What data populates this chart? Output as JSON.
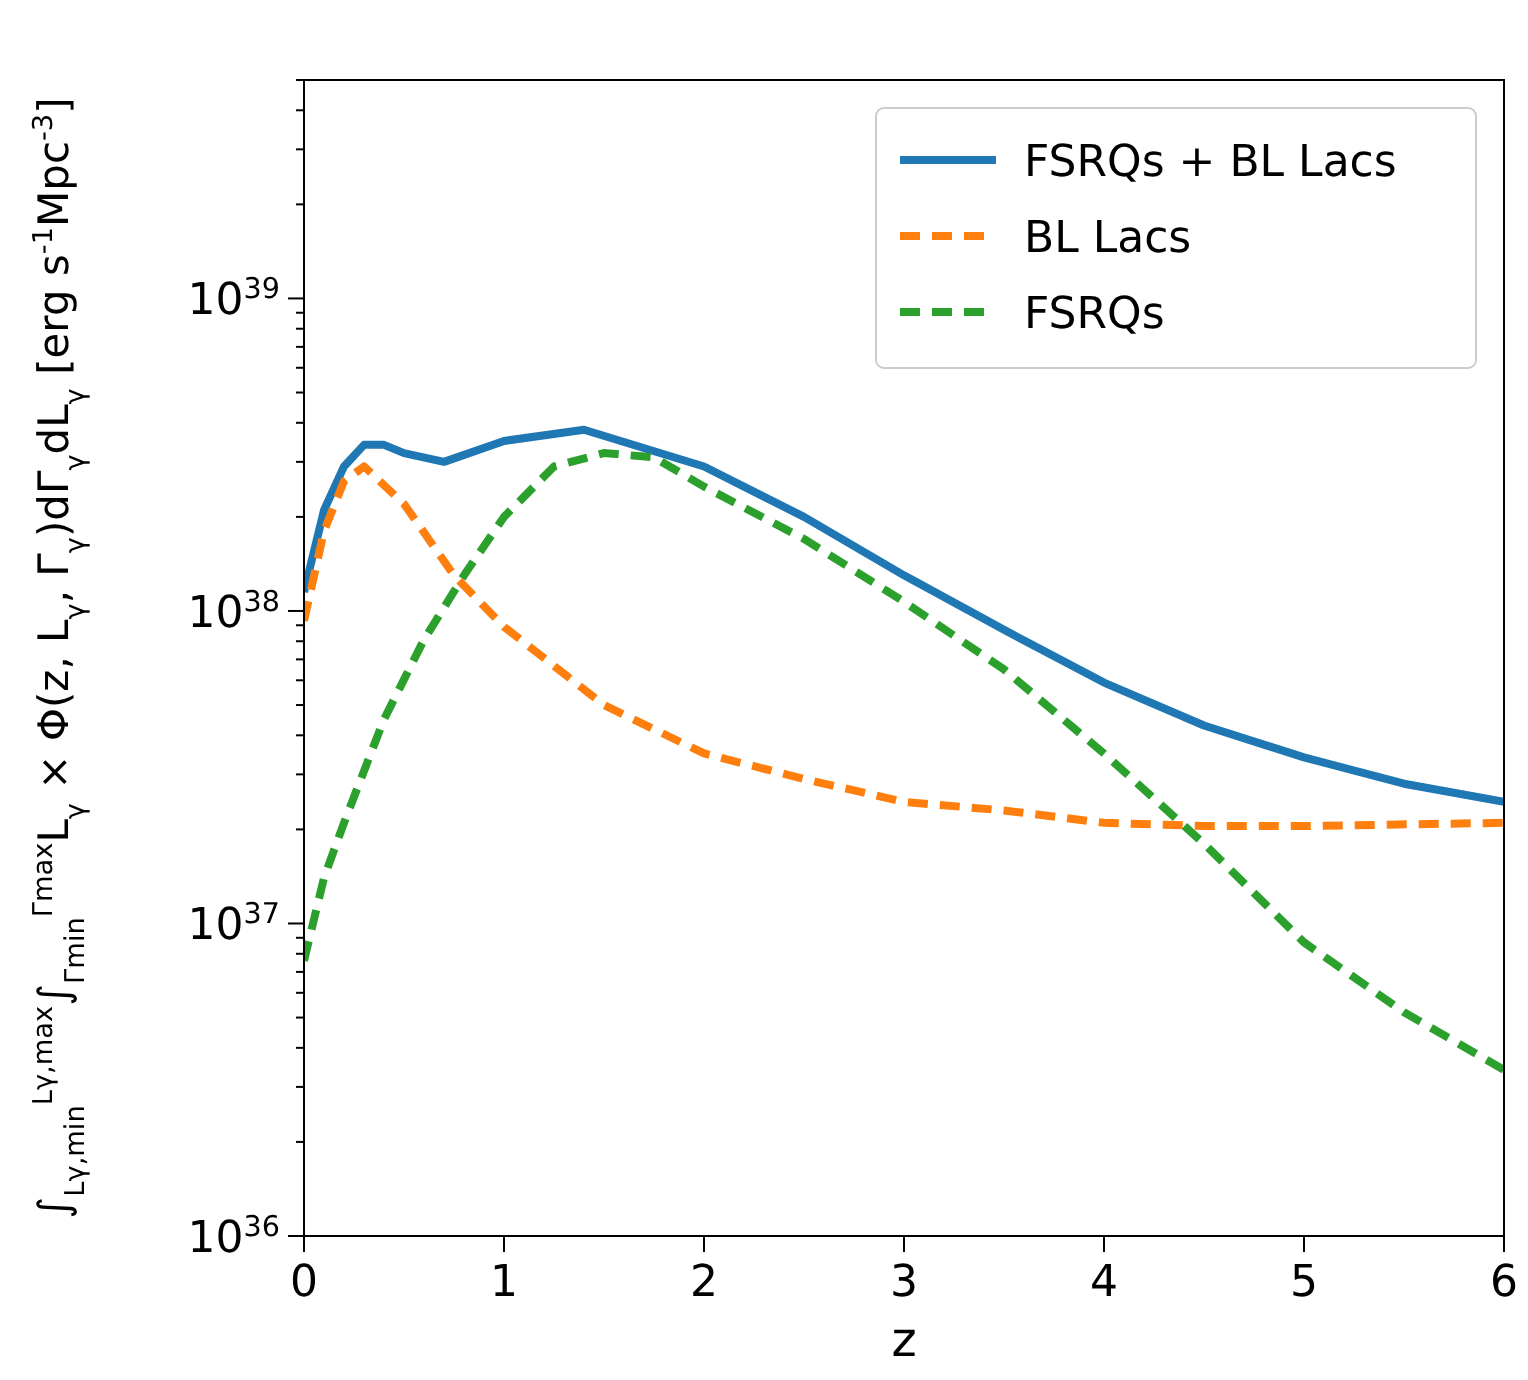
{
  "chart_data": {
    "type": "line",
    "xlabel": "z",
    "ylabel": "∫$_{Lγ,min}$$^{Lγ,max}$∫$_{Γmin}$$^{Γmax}$L$_{γ}$ × Φ(z, L$_{γ}$, Γ$_{γ}$)dΓ$_{γ}$dL$_{γ}$  [erg s$^{-1}$Mpc$^{-3}$]",
    "log": "y",
    "xlim": [
      0,
      6
    ],
    "ylim": [
      1e+36,
      5e+39
    ],
    "xticks": [
      0,
      1,
      2,
      3,
      4,
      5,
      6
    ],
    "yticks": [
      {
        "value": 1e+36,
        "label": "10$^{36}$"
      },
      {
        "value": 2e+36,
        "label": null
      },
      {
        "value": 3e+36,
        "label": null
      },
      {
        "value": 4e+36,
        "label": null
      },
      {
        "value": 5e+36,
        "label": null
      },
      {
        "value": 6e+36,
        "label": null
      },
      {
        "value": 7e+36,
        "label": null
      },
      {
        "value": 8e+36,
        "label": null
      },
      {
        "value": 9e+36,
        "label": null
      },
      {
        "value": 1e+37,
        "label": "10$^{37}$"
      },
      {
        "value": 2e+37,
        "label": null
      },
      {
        "value": 3e+37,
        "label": null
      },
      {
        "value": 4e+37,
        "label": null
      },
      {
        "value": 5e+37,
        "label": null
      },
      {
        "value": 6e+37,
        "label": null
      },
      {
        "value": 7e+37,
        "label": null
      },
      {
        "value": 8e+37,
        "label": null
      },
      {
        "value": 9e+37,
        "label": null
      },
      {
        "value": 1e+38,
        "label": "10$^{38}$"
      },
      {
        "value": 2e+38,
        "label": null
      },
      {
        "value": 3e+38,
        "label": null
      },
      {
        "value": 4e+38,
        "label": null
      },
      {
        "value": 5e+38,
        "label": null
      },
      {
        "value": 6e+38,
        "label": null
      },
      {
        "value": 7e+38,
        "label": null
      },
      {
        "value": 8e+38,
        "label": null
      },
      {
        "value": 9e+38,
        "label": null
      },
      {
        "value": 1e+39,
        "label": "10$^{39}$"
      },
      {
        "value": 2e+39,
        "label": null
      },
      {
        "value": 3e+39,
        "label": null
      },
      {
        "value": 4e+39,
        "label": null
      },
      {
        "value": 5e+39,
        "label": null
      }
    ],
    "grid": false,
    "legend": "top right",
    "marker": "none",
    "series": [
      {
        "name": "FSRQs + BL Lacs",
        "color": "#1f77b4",
        "line_style": "solid",
        "x": [
          0,
          0.1,
          0.2,
          0.3,
          0.4,
          0.5,
          0.7,
          1,
          1.4,
          2,
          2.5,
          3,
          3.5,
          4,
          4.5,
          5,
          5.5,
          6
        ],
        "values": [
          1.15e+38,
          2.1e+38,
          2.9e+38,
          3.4e+38,
          3.4e+38,
          3.2e+38,
          3e+38,
          3.5e+38,
          3.8e+38,
          2.9e+38,
          2e+38,
          1.3e+38,
          8.7e+37,
          5.9e+37,
          4.3e+37,
          3.4e+37,
          2.8e+37,
          2.45e+37
        ]
      },
      {
        "name": "BL Lacs",
        "color": "#ff7f0e",
        "line_style": "dashed",
        "x": [
          0,
          0.1,
          0.2,
          0.3,
          0.5,
          0.75,
          1,
          1.5,
          2,
          2.5,
          3,
          3.5,
          4,
          4.5,
          5,
          6
        ],
        "values": [
          9.3e+37,
          1.8e+38,
          2.6e+38,
          2.9e+38,
          2.2e+38,
          1.3e+38,
          8.9e+37,
          5e+37,
          3.5e+37,
          2.9e+37,
          2.45e+37,
          2.3e+37,
          2.1e+37,
          2.05e+37,
          2.05e+37,
          2.1e+37
        ]
      },
      {
        "name": "FSRQs",
        "color": "#2ca02c",
        "line_style": "dashed",
        "x": [
          0,
          0.1,
          0.2,
          0.4,
          0.6,
          0.8,
          1,
          1.25,
          1.5,
          1.75,
          2,
          2.5,
          3,
          3.5,
          4,
          4.5,
          5,
          5.5,
          6
        ],
        "values": [
          7.6e+36,
          1.4e+37,
          2.1e+37,
          4.5e+37,
          8.1e+37,
          1.3e+38,
          2e+38,
          2.9e+38,
          3.2e+38,
          3.1e+38,
          2.5e+38,
          1.7e+38,
          1.07e+38,
          6.5e+37,
          3.5e+37,
          1.8e+37,
          8.7e+36,
          5.2e+36,
          3.4e+36
        ]
      }
    ]
  }
}
